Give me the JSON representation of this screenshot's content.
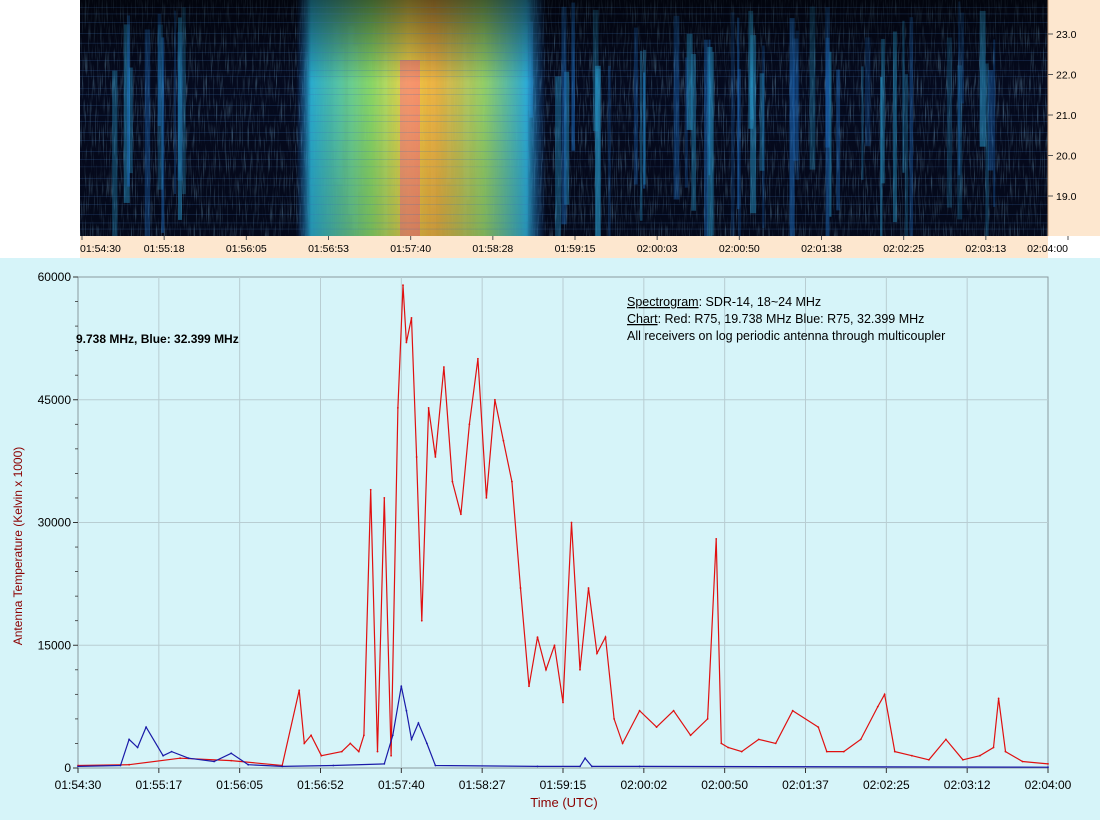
{
  "spectrogram": {
    "freq_ticks": [
      "23.0",
      "22.0",
      "21.0",
      "20.0",
      "19.0"
    ],
    "time_ticks": [
      "01:54:30",
      "01:55:18",
      "01:56:05",
      "01:56:53",
      "01:57:40",
      "01:58:28",
      "01:59:15",
      "02:00:03",
      "02:00:50",
      "02:01:38",
      "02:02:25",
      "02:03:13",
      "02:04:00"
    ]
  },
  "legend": {
    "truncated_line": "9.738 MHz, Blue: 32.399 MHz",
    "spec_key": "Spectrogram",
    "spec_value": ": SDR-14, 18~24 MHz",
    "chart_key": "Chart",
    "chart_value": ": Red: R75, 19.738 MHz Blue: R75, 32.399 MHz",
    "note": "All receivers on log periodic antenna through multicoupler"
  },
  "colors": {
    "red_series": "#e01010",
    "blue_series": "#1a1aa8",
    "chart_bg": "#d6f4f9",
    "axis_label": "#8b0000"
  },
  "chart_data": {
    "type": "line",
    "title": "",
    "xlabel": "Time (UTC)",
    "ylabel": "Antenna Temperature (Kelvin x 1000)",
    "ylim": [
      0,
      60000
    ],
    "xlim": [
      "01:54:30",
      "02:04:00"
    ],
    "grid": true,
    "xticks": [
      "01:54:30",
      "01:55:17",
      "01:56:05",
      "01:56:52",
      "01:57:40",
      "01:58:27",
      "01:59:15",
      "02:00:02",
      "02:00:50",
      "02:01:37",
      "02:02:25",
      "02:03:12",
      "02:04:00"
    ],
    "yticks": [
      "0",
      "15000",
      "30000",
      "45000",
      "60000"
    ],
    "series": [
      {
        "name": "Red",
        "color": "#e01010",
        "x": [
          "01:54:30",
          "01:55:00",
          "01:55:30",
          "01:56:00",
          "01:56:30",
          "01:56:40",
          "01:56:43",
          "01:56:47",
          "01:56:53",
          "01:57:05",
          "01:57:10",
          "01:57:15",
          "01:57:18",
          "01:57:22",
          "01:57:26",
          "01:57:30",
          "01:57:34",
          "01:57:38",
          "01:57:41",
          "01:57:43",
          "01:57:46",
          "01:57:49",
          "01:57:52",
          "01:57:56",
          "01:58:00",
          "01:58:05",
          "01:58:10",
          "01:58:15",
          "01:58:20",
          "01:58:25",
          "01:58:30",
          "01:58:35",
          "01:58:40",
          "01:58:45",
          "01:58:50",
          "01:58:55",
          "01:59:00",
          "01:59:05",
          "01:59:10",
          "01:59:15",
          "01:59:20",
          "01:59:25",
          "01:59:30",
          "01:59:35",
          "01:59:40",
          "01:59:45",
          "01:59:50",
          "02:00:00",
          "02:00:10",
          "02:00:20",
          "02:00:30",
          "02:00:40",
          "02:00:45",
          "02:00:48",
          "02:00:52",
          "02:01:00",
          "02:01:10",
          "02:01:20",
          "02:01:30",
          "02:01:45",
          "02:01:50",
          "02:02:00",
          "02:02:10",
          "02:02:20",
          "02:02:24",
          "02:02:30",
          "02:02:40",
          "02:02:50",
          "02:03:00",
          "02:03:10",
          "02:03:20",
          "02:03:28",
          "02:03:31",
          "02:03:35",
          "02:03:45",
          "02:04:00"
        ],
        "y": [
          300,
          400,
          1200,
          900,
          300,
          9500,
          3000,
          4000,
          1500,
          2000,
          3000,
          2000,
          4000,
          34000,
          2000,
          33000,
          1500,
          44000,
          59000,
          52000,
          55000,
          38000,
          18000,
          44000,
          38000,
          49000,
          35000,
          31000,
          42000,
          50000,
          33000,
          45000,
          40000,
          35000,
          22000,
          10000,
          16000,
          12000,
          15000,
          8000,
          30000,
          12000,
          22000,
          14000,
          16000,
          6000,
          3000,
          7000,
          5000,
          7000,
          4000,
          6000,
          28000,
          3000,
          2500,
          2000,
          3500,
          3000,
          7000,
          5000,
          2000,
          2000,
          3500,
          7500,
          9000,
          2000,
          1500,
          1000,
          3500,
          1000,
          1500,
          2500,
          8500,
          2000,
          800,
          500
        ]
      },
      {
        "name": "Blue",
        "color": "#1a1aa8",
        "x": [
          "01:54:30",
          "01:54:55",
          "01:55:00",
          "01:55:05",
          "01:55:10",
          "01:55:20",
          "01:55:25",
          "01:55:35",
          "01:55:50",
          "01:56:00",
          "01:56:10",
          "01:56:30",
          "01:57:00",
          "01:57:30",
          "01:57:35",
          "01:57:40",
          "01:57:43",
          "01:57:46",
          "01:57:50",
          "01:57:55",
          "01:58:00",
          "01:59:00",
          "01:59:25",
          "01:59:28",
          "01:59:32",
          "02:00:00",
          "02:04:00"
        ],
        "y": [
          200,
          300,
          3500,
          2500,
          5000,
          1500,
          2000,
          1200,
          800,
          1800,
          400,
          200,
          300,
          500,
          4000,
          10000,
          7000,
          3500,
          5500,
          3000,
          300,
          200,
          200,
          1200,
          200,
          200,
          100
        ]
      }
    ]
  }
}
